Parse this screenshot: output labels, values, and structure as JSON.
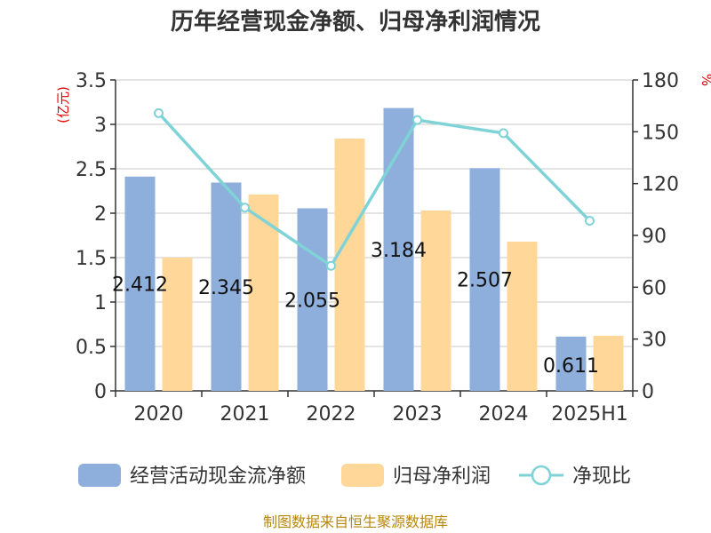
{
  "title": "历年经营现金净额、归母净利润情况",
  "y_left_unit": "(亿元)",
  "y_right_unit": "%",
  "source": "制图数据来自恒生聚源数据库",
  "colors": {
    "bar1": "#8eaedb",
    "bar2": "#ffd899",
    "line": "#7fd3d7",
    "grid": "#c8c8c8",
    "axis": "#333333"
  },
  "chart_data": {
    "type": "bar",
    "categories": [
      "2020",
      "2021",
      "2022",
      "2023",
      "2024",
      "2025H1"
    ],
    "y_left": {
      "min": 0,
      "max": 3.5,
      "ticks": [
        "0",
        "0.5",
        "1",
        "1.5",
        "2",
        "2.5",
        "3",
        "3.5"
      ]
    },
    "y_right": {
      "min": 0,
      "max": 180,
      "ticks": [
        "0",
        "30",
        "60",
        "90",
        "120",
        "150",
        "180"
      ]
    },
    "series": [
      {
        "name": "经营活动现金流净额",
        "type": "bar",
        "axis": "left",
        "values": [
          2.412,
          2.345,
          2.055,
          3.184,
          2.507,
          0.611
        ],
        "labels": [
          "2.412",
          "2.345",
          "2.055",
          "3.184",
          "2.507",
          "0.611"
        ]
      },
      {
        "name": "归母净利润",
        "type": "bar",
        "axis": "left",
        "values": [
          1.5,
          2.21,
          2.84,
          2.03,
          1.68,
          0.62
        ]
      },
      {
        "name": "净现比",
        "type": "line",
        "axis": "right",
        "values": [
          160.8,
          106.1,
          72.4,
          156.8,
          149.2,
          98.5
        ]
      }
    ],
    "grid": true,
    "legend_position": "bottom"
  }
}
